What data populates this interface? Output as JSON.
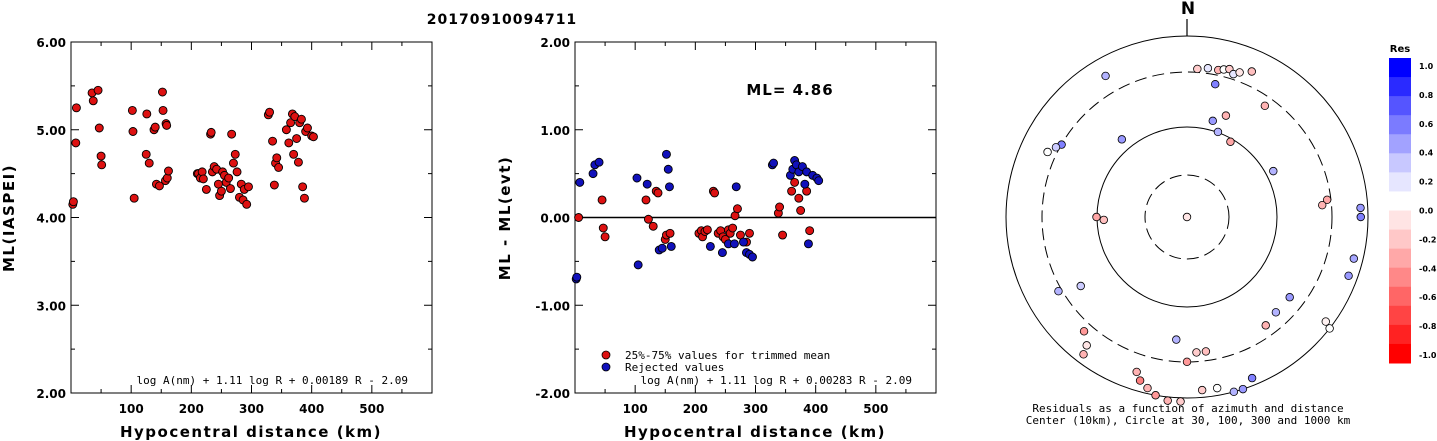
{
  "title": "20170910094711",
  "chart_data": [
    {
      "type": "scatter",
      "ylabel": "ML(IASPEI)",
      "xlabel": "Hypocentral distance (km)",
      "xlim": [
        0,
        600
      ],
      "ylim": [
        2.0,
        6.0
      ],
      "x_ticks": [
        "100",
        "200",
        "300",
        "400",
        "500"
      ],
      "y_ticks": [
        "2.00",
        "3.00",
        "4.00",
        "5.00",
        "6.00"
      ],
      "formula": "log A(nm) + 1.11 log R + 0.00189 R - 2.09",
      "points": [
        [
          3,
          4.15
        ],
        [
          4,
          4.18
        ],
        [
          8,
          4.85
        ],
        [
          9,
          5.25
        ],
        [
          35,
          5.42
        ],
        [
          37,
          5.33
        ],
        [
          45,
          5.45
        ],
        [
          47,
          5.02
        ],
        [
          50,
          4.7
        ],
        [
          51,
          4.6
        ],
        [
          102,
          5.22
        ],
        [
          103,
          4.98
        ],
        [
          105,
          4.22
        ],
        [
          125,
          4.72
        ],
        [
          126,
          5.18
        ],
        [
          130,
          4.62
        ],
        [
          138,
          5.0
        ],
        [
          140,
          5.03
        ],
        [
          142,
          4.38
        ],
        [
          147,
          4.36
        ],
        [
          152,
          5.43
        ],
        [
          153,
          5.22
        ],
        [
          157,
          4.42
        ],
        [
          158,
          5.07
        ],
        [
          159,
          5.05
        ],
        [
          160,
          4.45
        ],
        [
          162,
          4.53
        ],
        [
          210,
          4.5
        ],
        [
          212,
          4.5
        ],
        [
          215,
          4.45
        ],
        [
          218,
          4.52
        ],
        [
          220,
          4.44
        ],
        [
          225,
          4.32
        ],
        [
          232,
          4.95
        ],
        [
          233,
          4.97
        ],
        [
          235,
          4.52
        ],
        [
          238,
          4.58
        ],
        [
          242,
          4.55
        ],
        [
          245,
          4.38
        ],
        [
          247,
          4.25
        ],
        [
          250,
          4.3
        ],
        [
          252,
          4.52
        ],
        [
          255,
          4.48
        ],
        [
          258,
          4.4
        ],
        [
          262,
          4.45
        ],
        [
          265,
          4.33
        ],
        [
          267,
          4.95
        ],
        [
          270,
          4.62
        ],
        [
          273,
          4.72
        ],
        [
          276,
          4.52
        ],
        [
          280,
          4.23
        ],
        [
          283,
          4.38
        ],
        [
          286,
          4.2
        ],
        [
          288,
          4.32
        ],
        [
          292,
          4.15
        ],
        [
          295,
          4.35
        ],
        [
          328,
          5.17
        ],
        [
          330,
          5.2
        ],
        [
          335,
          4.87
        ],
        [
          338,
          4.37
        ],
        [
          340,
          4.62
        ],
        [
          342,
          4.68
        ],
        [
          345,
          4.57
        ],
        [
          358,
          5.0
        ],
        [
          362,
          4.85
        ],
        [
          365,
          5.08
        ],
        [
          368,
          5.18
        ],
        [
          370,
          4.72
        ],
        [
          372,
          5.15
        ],
        [
          375,
          4.9
        ],
        [
          378,
          4.63
        ],
        [
          380,
          5.08
        ],
        [
          383,
          5.12
        ],
        [
          385,
          4.35
        ],
        [
          388,
          4.22
        ],
        [
          390,
          4.98
        ],
        [
          393,
          5.02
        ],
        [
          400,
          4.93
        ],
        [
          403,
          4.92
        ]
      ]
    },
    {
      "type": "scatter",
      "ylabel": "ML - ML(evt)",
      "xlabel": "Hypocentral distance (km)",
      "xlim": [
        0,
        600
      ],
      "ylim": [
        -2.0,
        2.0
      ],
      "x_ticks": [
        "100",
        "200",
        "300",
        "400",
        "500"
      ],
      "y_ticks": [
        "-2.00",
        "-1.00",
        "0.00",
        "1.00",
        "2.00"
      ],
      "ml_label": "ML= 4.86",
      "legend": [
        "25%-75% values for trimmed mean",
        "Rejected values"
      ],
      "legend_colors": [
        "#dd1111",
        "#1111bb"
      ],
      "formula": "log A(nm) + 1.11 log R + 0.00283 R - 2.09",
      "series": [
        {
          "name": "25%-75% values for trimmed mean",
          "color": "#dd1111",
          "points": [
            [
              6,
              0.0
            ],
            [
              45,
              0.2
            ],
            [
              47,
              -0.12
            ],
            [
              50,
              -0.22
            ],
            [
              118,
              0.2
            ],
            [
              122,
              -0.02
            ],
            [
              130,
              -0.1
            ],
            [
              135,
              0.3
            ],
            [
              138,
              0.28
            ],
            [
              150,
              -0.25
            ],
            [
              152,
              -0.2
            ],
            [
              158,
              -0.18
            ],
            [
              206,
              -0.18
            ],
            [
              210,
              -0.15
            ],
            [
              212,
              -0.22
            ],
            [
              216,
              -0.16
            ],
            [
              220,
              -0.14
            ],
            [
              230,
              0.3
            ],
            [
              232,
              0.28
            ],
            [
              238,
              -0.18
            ],
            [
              242,
              -0.15
            ],
            [
              246,
              -0.22
            ],
            [
              250,
              -0.25
            ],
            [
              255,
              -0.14
            ],
            [
              258,
              -0.18
            ],
            [
              262,
              -0.12
            ],
            [
              266,
              0.02
            ],
            [
              270,
              0.1
            ],
            [
              275,
              -0.2
            ],
            [
              285,
              -0.28
            ],
            [
              290,
              -0.18
            ],
            [
              338,
              0.05
            ],
            [
              340,
              0.12
            ],
            [
              345,
              -0.2
            ],
            [
              360,
              0.3
            ],
            [
              365,
              0.4
            ],
            [
              372,
              0.22
            ],
            [
              375,
              0.08
            ],
            [
              385,
              0.3
            ],
            [
              390,
              -0.15
            ]
          ]
        },
        {
          "name": "Rejected values",
          "color": "#1111bb",
          "points": [
            [
              2,
              -0.7
            ],
            [
              3,
              -0.68
            ],
            [
              8,
              0.4
            ],
            [
              30,
              0.5
            ],
            [
              33,
              0.6
            ],
            [
              40,
              0.63
            ],
            [
              103,
              0.45
            ],
            [
              105,
              -0.54
            ],
            [
              120,
              0.38
            ],
            [
              140,
              -0.37
            ],
            [
              145,
              -0.35
            ],
            [
              152,
              0.72
            ],
            [
              155,
              0.55
            ],
            [
              157,
              0.35
            ],
            [
              160,
              -0.33
            ],
            [
              225,
              -0.33
            ],
            [
              245,
              -0.4
            ],
            [
              255,
              -0.3
            ],
            [
              265,
              -0.3
            ],
            [
              268,
              0.35
            ],
            [
              280,
              -0.28
            ],
            [
              285,
              -0.4
            ],
            [
              290,
              -0.42
            ],
            [
              295,
              -0.45
            ],
            [
              328,
              0.6
            ],
            [
              330,
              0.62
            ],
            [
              358,
              0.48
            ],
            [
              362,
              0.55
            ],
            [
              365,
              0.65
            ],
            [
              368,
              0.6
            ],
            [
              372,
              0.52
            ],
            [
              378,
              0.58
            ],
            [
              382,
              0.38
            ],
            [
              385,
              0.52
            ],
            [
              388,
              -0.3
            ],
            [
              395,
              0.48
            ],
            [
              402,
              0.45
            ],
            [
              405,
              0.42
            ]
          ]
        }
      ]
    },
    {
      "type": "scatter",
      "north_label": "N",
      "caption_line1": "Residuals as a function of azimuth and distance",
      "caption_line2": "Center (10km), Circle at 30, 100, 300 and 1000 km",
      "colorbar_title": "Res",
      "colorbar_labels": [
        "1.0",
        "0.8",
        "0.6",
        "0.4",
        "0.2",
        "0.0",
        "-0.2",
        "-0.4",
        "-0.6",
        "-0.8",
        "-1.0"
      ],
      "colorbar_colors": [
        "#0000ff",
        "#2a2aff",
        "#5555ff",
        "#7b7bff",
        "#a2a2ff",
        "#c8c8ff",
        "#e6e6ff",
        "#ffffff",
        "#ffe4e4",
        "#ffc8c8",
        "#ffa8a8",
        "#ff8888",
        "#ff6666",
        "#ff4444",
        "#ff2222",
        "#ff0000"
      ],
      "stations": [
        [
          0.0,
          0.0,
          -0.1
        ],
        [
          320,
          0.56,
          0.4
        ],
        [
          62,
          0.54,
          0.3
        ],
        [
          35,
          0.75,
          -0.3
        ],
        [
          12,
          0.75,
          0.5
        ],
        [
          15,
          0.55,
          0.4
        ],
        [
          20,
          0.5,
          0.3
        ],
        [
          4,
          0.82,
          -0.2
        ],
        [
          8,
          0.83,
          0.1
        ],
        [
          12,
          0.83,
          -0.3
        ],
        [
          14,
          0.84,
          0.0
        ],
        [
          16,
          0.85,
          -0.2
        ],
        [
          18,
          0.83,
          0.1
        ],
        [
          20,
          0.85,
          -0.1
        ],
        [
          24,
          0.88,
          -0.25
        ],
        [
          21,
          0.6,
          -0.3
        ],
        [
          30,
          0.48,
          -0.35
        ],
        [
          300,
          0.8,
          0.5
        ],
        [
          298,
          0.82,
          0.2
        ],
        [
          295,
          0.85,
          0.0
        ],
        [
          330,
          0.9,
          0.3
        ],
        [
          83,
          0.78,
          -0.35
        ],
        [
          85,
          0.75,
          -0.3
        ],
        [
          87,
          0.96,
          0.4
        ],
        [
          90,
          0.96,
          0.5
        ],
        [
          104,
          0.95,
          0.35
        ],
        [
          110,
          0.95,
          0.4
        ],
        [
          128,
          0.72,
          0.4
        ],
        [
          127,
          0.96,
          -0.05
        ],
        [
          128,
          1.0,
          0.0
        ],
        [
          176,
          0.75,
          -0.2
        ],
        [
          172,
          0.75,
          -0.25
        ],
        [
          185,
          0.68,
          0.3
        ],
        [
          180,
          0.8,
          -0.4
        ],
        [
          198,
          0.9,
          -0.3
        ],
        [
          196,
          0.94,
          -0.5
        ],
        [
          193,
          0.97,
          -0.3
        ],
        [
          190,
          1.0,
          -0.4
        ],
        [
          186,
          1.02,
          -0.3
        ],
        [
          182,
          1.02,
          -0.2
        ],
        [
          175,
          0.96,
          -0.2
        ],
        [
          170,
          0.96,
          0.0
        ],
        [
          165,
          1.0,
          0.3
        ],
        [
          162,
          1.0,
          0.4
        ],
        [
          158,
          0.96,
          0.5
        ],
        [
          217,
          0.95,
          -0.3
        ],
        [
          218,
          0.9,
          -0.1
        ],
        [
          222,
          0.85,
          -0.4
        ],
        [
          240,
          0.82,
          0.3
        ],
        [
          237,
          0.7,
          0.2
        ],
        [
          268,
          0.46,
          -0.25
        ],
        [
          270,
          0.5,
          -0.35
        ],
        [
          137,
          0.72,
          0.3
        ],
        [
          144,
          0.74,
          -0.3
        ]
      ]
    }
  ]
}
